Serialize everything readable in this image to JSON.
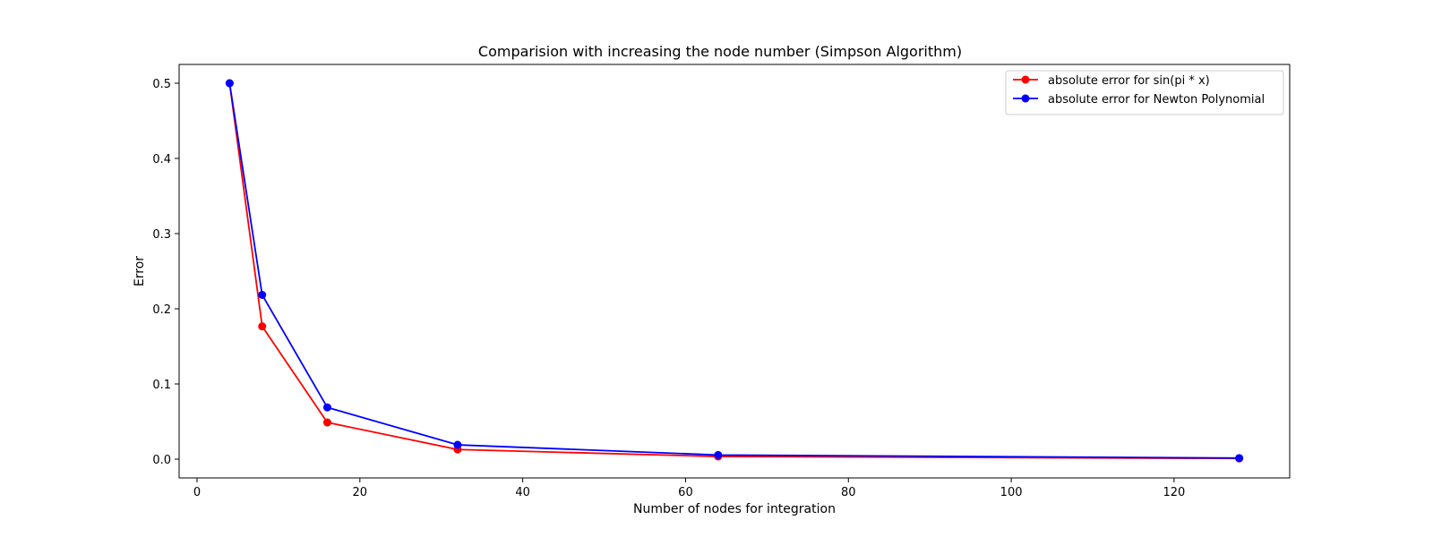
{
  "chart_data": {
    "type": "line",
    "title": "Comparision with increasing the node number (Simpson Algorithm)",
    "xlabel": "Number of nodes for integration",
    "ylabel": "Error",
    "xlim": [
      -2.2,
      134.2
    ],
    "ylim": [
      -0.025,
      0.525
    ],
    "xticks": [
      0,
      20,
      40,
      60,
      80,
      100,
      120
    ],
    "yticks": [
      0.0,
      0.1,
      0.2,
      0.3,
      0.4,
      0.5
    ],
    "x": [
      4,
      8,
      16,
      32,
      64,
      128
    ],
    "grid": false,
    "legend_position": "top-right",
    "series": [
      {
        "name": "absolute error for sin(pi * x)",
        "color": "#ff0000",
        "marker": "circle",
        "values": [
          0.5,
          0.1766,
          0.0488,
          0.0128,
          0.0035,
          0.0009
        ]
      },
      {
        "name": "absolute error for Newton Polynomial",
        "color": "#0000ff",
        "marker": "circle",
        "values": [
          0.5,
          0.2185,
          0.0688,
          0.019,
          0.0055,
          0.0014
        ]
      }
    ]
  }
}
